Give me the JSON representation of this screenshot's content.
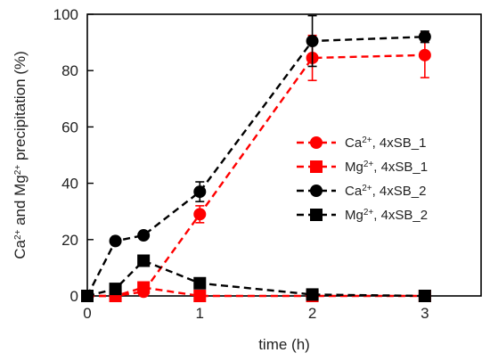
{
  "chart_data": {
    "type": "scatter",
    "xlabel": "time (h)",
    "ylabel_parts": [
      "Ca",
      "2+",
      " and Mg",
      "2+",
      " precipitation (%)"
    ],
    "xlim": [
      0,
      3.5
    ],
    "ylim": [
      0,
      100
    ],
    "x_ticks": [
      0,
      1,
      2,
      3
    ],
    "y_ticks": [
      0,
      20,
      40,
      60,
      80,
      100
    ],
    "grid": false,
    "legend_position": "center-right",
    "series": [
      {
        "name_parts": [
          "Ca",
          "2+",
          ", 4xSB_1"
        ],
        "color": "#ff0000",
        "marker": "circle",
        "line": "dashed",
        "x": [
          0,
          0.25,
          0.5,
          1,
          2,
          3
        ],
        "y": [
          0,
          0,
          1.5,
          29,
          84.5,
          85.5
        ],
        "err": [
          0,
          0,
          0,
          3,
          8,
          8
        ]
      },
      {
        "name_parts": [
          "Mg",
          "2+",
          ", 4xSB_1"
        ],
        "color": "#ff0000",
        "marker": "square",
        "line": "dashed",
        "x": [
          0,
          0.25,
          0.5,
          1,
          2,
          3
        ],
        "y": [
          0,
          0,
          3,
          0,
          0,
          0
        ],
        "err": [
          0,
          0,
          0,
          0,
          0,
          0
        ]
      },
      {
        "name_parts": [
          "Ca",
          "2+",
          ", 4xSB_2"
        ],
        "color": "#000000",
        "marker": "circle",
        "line": "dashed",
        "x": [
          0,
          0.25,
          0.5,
          1,
          2,
          3
        ],
        "y": [
          0,
          19.5,
          21.5,
          37,
          90.5,
          92
        ],
        "err": [
          0,
          1,
          1,
          3.5,
          9,
          2
        ]
      },
      {
        "name_parts": [
          "Mg",
          "2+",
          ", 4xSB_2"
        ],
        "color": "#000000",
        "marker": "square",
        "line": "dashed",
        "x": [
          0,
          0.25,
          0.5,
          1,
          2,
          3
        ],
        "y": [
          0,
          2.5,
          12.5,
          4.5,
          0.5,
          0
        ],
        "err": [
          0,
          0,
          0,
          0,
          0,
          0
        ]
      }
    ]
  }
}
